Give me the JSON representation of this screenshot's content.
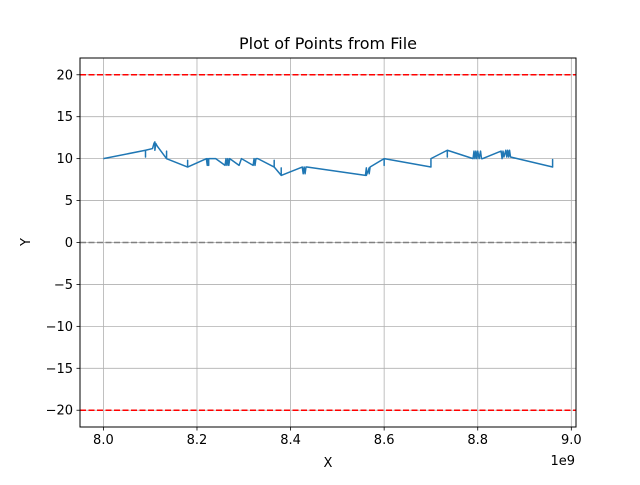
{
  "chart_data": {
    "type": "line",
    "title": "Plot of Points from File",
    "xlabel": "X",
    "ylabel": "Y",
    "x_offset_label": "1e9",
    "xlim": [
      7950000000.0,
      9010000000.0
    ],
    "ylim": [
      -22,
      22
    ],
    "grid": true,
    "x_ticks": [
      8000000000.0,
      8200000000.0,
      8400000000.0,
      8600000000.0,
      8800000000.0,
      9000000000.0
    ],
    "x_tick_labels": [
      "8.0",
      "8.2",
      "8.4",
      "8.6",
      "8.8",
      "9.0"
    ],
    "y_ticks": [
      -20,
      -15,
      -10,
      -5,
      0,
      5,
      10,
      15,
      20
    ],
    "y_tick_labels": [
      "−20",
      "−15",
      "−10",
      "−5",
      "0",
      "5",
      "10",
      "15",
      "20"
    ],
    "reference_lines": [
      {
        "y": 20,
        "color": "#ff0000",
        "style": "dashed"
      },
      {
        "y": 0,
        "color": "#808080",
        "style": "dashed"
      },
      {
        "y": -20,
        "color": "#ff0000",
        "style": "dashed"
      }
    ],
    "series": [
      {
        "color": "#1f77b4",
        "x": [
          8000000000.0,
          8090000000.0,
          8090000000.0,
          8090000000.0,
          8105000000.0,
          8108000000.0,
          8110000000.0,
          8110000000.0,
          8112000000.0,
          8115000000.0,
          8135000000.0,
          8135000000.0,
          8135000000.0,
          8180000000.0,
          8180000000.0,
          8180000000.0,
          8220000000.0,
          8222000000.0,
          8222000000.0,
          8225000000.0,
          8225000000.0,
          8240000000.0,
          8260000000.0,
          8262000000.0,
          8264000000.0,
          8266000000.0,
          8268000000.0,
          8270000000.0,
          8290000000.0,
          8295000000.0,
          8320000000.0,
          8322000000.0,
          8324000000.0,
          8326000000.0,
          8330000000.0,
          8365000000.0,
          8365000000.0,
          8365000000.0,
          8380000000.0,
          8380000000.0,
          8380000000.0,
          8425000000.0,
          8427000000.0,
          8429000000.0,
          8431000000.0,
          8433000000.0,
          8435000000.0,
          8560000000.0,
          8562000000.0,
          8562000000.0,
          8568000000.0,
          8568000000.0,
          8570000000.0,
          8600000000.0,
          8600000000.0,
          8600000000.0,
          8700000000.0,
          8700000000.0,
          8700000000.0,
          8735000000.0,
          8735000000.0,
          8735000000.0,
          8790000000.0,
          8792000000.0,
          8794000000.0,
          8796000000.0,
          8798000000.0,
          8800000000.0,
          8803000000.0,
          8806000000.0,
          8808000000.0,
          8810000000.0,
          8850000000.0,
          8852000000.0,
          8854000000.0,
          8856000000.0,
          8860000000.0,
          8862000000.0,
          8864000000.0,
          8866000000.0,
          8868000000.0,
          8870000000.0,
          8960000000.0,
          8960000000.0,
          8960000000.0
        ],
        "y": [
          10,
          11,
          10.2,
          11,
          11.2,
          11.8,
          12,
          11,
          11.8,
          11.5,
          10,
          10.9,
          10,
          9,
          9.8,
          9,
          10,
          9.2,
          10,
          9.2,
          10,
          10,
          9.2,
          10,
          9.2,
          10,
          9.2,
          10,
          9.2,
          10,
          9.2,
          10,
          9.2,
          10,
          10,
          9,
          9.8,
          9,
          8,
          8.9,
          8,
          9,
          8.2,
          9,
          8.2,
          9,
          9,
          8,
          8.9,
          8,
          8.9,
          8.2,
          9,
          10,
          9.2,
          10,
          9,
          10,
          10,
          11,
          10.2,
          11,
          10,
          10.9,
          10,
          10.9,
          10,
          10.9,
          10,
          10.9,
          10,
          10,
          10.9,
          10,
          10.9,
          10.2,
          11,
          10.2,
          11,
          10.2,
          11,
          10.2,
          9,
          9.9,
          9
        ]
      }
    ]
  }
}
